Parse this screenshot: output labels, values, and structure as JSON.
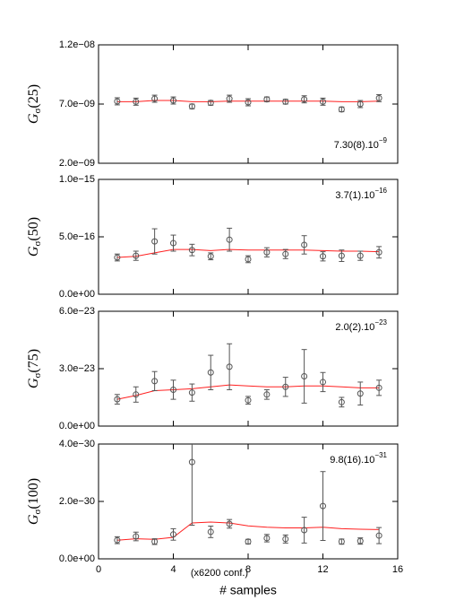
{
  "chart_data": [
    {
      "type": "errorbar",
      "ylabel_symbol": "G",
      "ylabel_subscript": "σ",
      "ylabel_arg": "(25)",
      "x": [
        1,
        2,
        3,
        4,
        5,
        6,
        7,
        8,
        9,
        10,
        11,
        12,
        13,
        14,
        15
      ],
      "values": [
        7.23e-09,
        7.2e-09,
        7.45e-09,
        7.3e-09,
        6.8e-09,
        7.1e-09,
        7.45e-09,
        7.15e-09,
        7.4e-09,
        7.2e-09,
        7.4e-09,
        7.2e-09,
        6.55e-09,
        7e-09,
        7.5e-09
      ],
      "errors": [
        3e-10,
        3e-10,
        3e-10,
        3e-10,
        2e-10,
        2e-10,
        3e-10,
        3e-10,
        2e-10,
        2e-10,
        3e-10,
        3e-10,
        2e-10,
        3e-10,
        3e-10
      ],
      "color": "#555555",
      "line": {
        "color": "#ff2020",
        "values": [
          7.2e-09,
          7.2e-09,
          7.3e-09,
          7.3e-09,
          7.2e-09,
          7.2e-09,
          7.25e-09,
          7.25e-09,
          7.25e-09,
          7.25e-09,
          7.25e-09,
          7.25e-09,
          7.2e-09,
          7.2e-09,
          7.25e-09
        ]
      },
      "annotation": "7.30(8).10",
      "annotation_sup": "−9",
      "annotation_corner": "lower right",
      "xlim": [
        0,
        16
      ],
      "ylim": [
        2e-09,
        1.2e-08
      ],
      "yticks": [
        {
          "value": 2e-09,
          "label": "2.0e−09"
        },
        {
          "value": 7e-09,
          "label": "7.0e−09"
        },
        {
          "value": 1.2e-08,
          "label": "1.2e−08"
        }
      ]
    },
    {
      "type": "errorbar",
      "ylabel_symbol": "G",
      "ylabel_subscript": "σ",
      "ylabel_arg": "(50)",
      "x": [
        1,
        2,
        3,
        4,
        5,
        6,
        7,
        8,
        9,
        10,
        11,
        12,
        13,
        14,
        15
      ],
      "values": [
        3.2e-16,
        3.35e-16,
        4.6e-16,
        4.45e-16,
        3.85e-16,
        3.3e-16,
        4.75e-16,
        3.05e-16,
        3.65e-16,
        3.5e-16,
        4.3e-16,
        3.3e-16,
        3.35e-16,
        3.35e-16,
        3.65e-16
      ],
      "errors": [
        3e-17,
        4e-17,
        1.1e-16,
        7e-17,
        5e-17,
        3e-17,
        1e-16,
        3e-17,
        4e-17,
        4e-17,
        8e-17,
        4e-17,
        5e-17,
        4e-17,
        5e-17
      ],
      "color": "#555555",
      "line": {
        "color": "#ff2020",
        "values": [
          3.2e-16,
          3.3e-16,
          3.6e-16,
          3.9e-16,
          3.9e-16,
          3.8e-16,
          3.9e-16,
          3.85e-16,
          3.85e-16,
          3.85e-16,
          3.85e-16,
          3.8e-16,
          3.75e-16,
          3.75e-16,
          3.7e-16
        ]
      },
      "annotation": "3.7(1).10",
      "annotation_sup": "−16",
      "annotation_corner": "upper right",
      "xlim": [
        0,
        16
      ],
      "ylim": [
        0,
        1e-15
      ],
      "yticks": [
        {
          "value": 0,
          "label": "0.0e+00"
        },
        {
          "value": 5e-16,
          "label": "5.0e−16"
        },
        {
          "value": 1e-15,
          "label": "1.0e−15"
        }
      ]
    },
    {
      "type": "errorbar",
      "ylabel_symbol": "G",
      "ylabel_subscript": "σ",
      "ylabel_arg": "(75)",
      "x": [
        1,
        2,
        3,
        4,
        5,
        6,
        7,
        8,
        9,
        10,
        11,
        12,
        13,
        14,
        15
      ],
      "values": [
        1.4e-23,
        1.65e-23,
        2.35e-23,
        1.9e-23,
        1.75e-23,
        2.8e-23,
        3.1e-23,
        1.35e-23,
        1.65e-23,
        2.05e-23,
        2.6e-23,
        2.3e-23,
        1.25e-23,
        1.7e-23,
        2e-23
      ],
      "errors": [
        2.5e-24,
        4e-24,
        5e-24,
        5e-24,
        4.5e-24,
        9e-24,
        1.2e-23,
        2e-24,
        2.5e-24,
        5e-24,
        1.4e-23,
        5e-24,
        2.5e-24,
        6e-24,
        4e-24
      ],
      "color": "#555555",
      "line": {
        "color": "#ff2020",
        "values": [
          1.4e-23,
          1.6e-23,
          1.85e-23,
          1.9e-23,
          1.95e-23,
          2.05e-23,
          2.15e-23,
          2.1e-23,
          2.05e-23,
          2.05e-23,
          2.1e-23,
          2.1e-23,
          2.05e-23,
          2e-23,
          2e-23
        ]
      },
      "annotation": "2.0(2).10",
      "annotation_sup": "−23",
      "annotation_corner": "upper right",
      "xlim": [
        0,
        16
      ],
      "ylim": [
        0,
        6e-23
      ],
      "yticks": [
        {
          "value": 0,
          "label": "0.0e+00"
        },
        {
          "value": 3e-23,
          "label": "3.0e−23"
        },
        {
          "value": 6e-23,
          "label": "6.0e−23"
        }
      ]
    },
    {
      "type": "errorbar",
      "ylabel_symbol": "G",
      "ylabel_subscript": "σ",
      "ylabel_arg": "(100)",
      "x": [
        1,
        2,
        3,
        4,
        5,
        6,
        7,
        8,
        9,
        10,
        11,
        12,
        13,
        14,
        15
      ],
      "values": [
        6.5e-31,
        7.8e-31,
        6e-31,
        8.5e-31,
        3.37e-30,
        9.4e-31,
        1.22e-30,
        6e-31,
        7.2e-31,
        6.9e-31,
        1e-30,
        1.84e-30,
        6e-31,
        6.2e-31,
        8.1e-31
      ],
      "errors": [
        1.2e-31,
        1.5e-31,
        1e-31,
        2e-31,
        2.2e-30,
        2e-31,
        1.5e-31,
        8e-32,
        1.3e-31,
        1.4e-31,
        4.5e-31,
        1.2e-30,
        9e-32,
        1.1e-31,
        2.8e-31
      ],
      "color": "#555555",
      "line": {
        "color": "#ff2020",
        "values": [
          6.5e-31,
          7e-31,
          6.8e-31,
          7.5e-31,
          1.25e-30,
          1.28e-30,
          1.25e-30,
          1.15e-30,
          1.1e-30,
          1.08e-30,
          1.08e-30,
          1.1e-30,
          1.05e-30,
          1.03e-30,
          1.02e-30
        ]
      },
      "annotation": "9.8(16).10",
      "annotation_sup": "−31",
      "annotation_corner": "upper right",
      "xlim": [
        0,
        16
      ],
      "xticks": [
        0,
        4,
        8,
        12,
        16
      ],
      "xlabel": "# samples",
      "xnote": "(x6200 conf.)",
      "ylim": [
        0,
        4e-30
      ],
      "yticks": [
        {
          "value": 0,
          "label": "0.0e+00"
        },
        {
          "value": 2e-30,
          "label": "2.0e−30"
        },
        {
          "value": 4e-30,
          "label": "4.0e−30"
        }
      ]
    }
  ]
}
